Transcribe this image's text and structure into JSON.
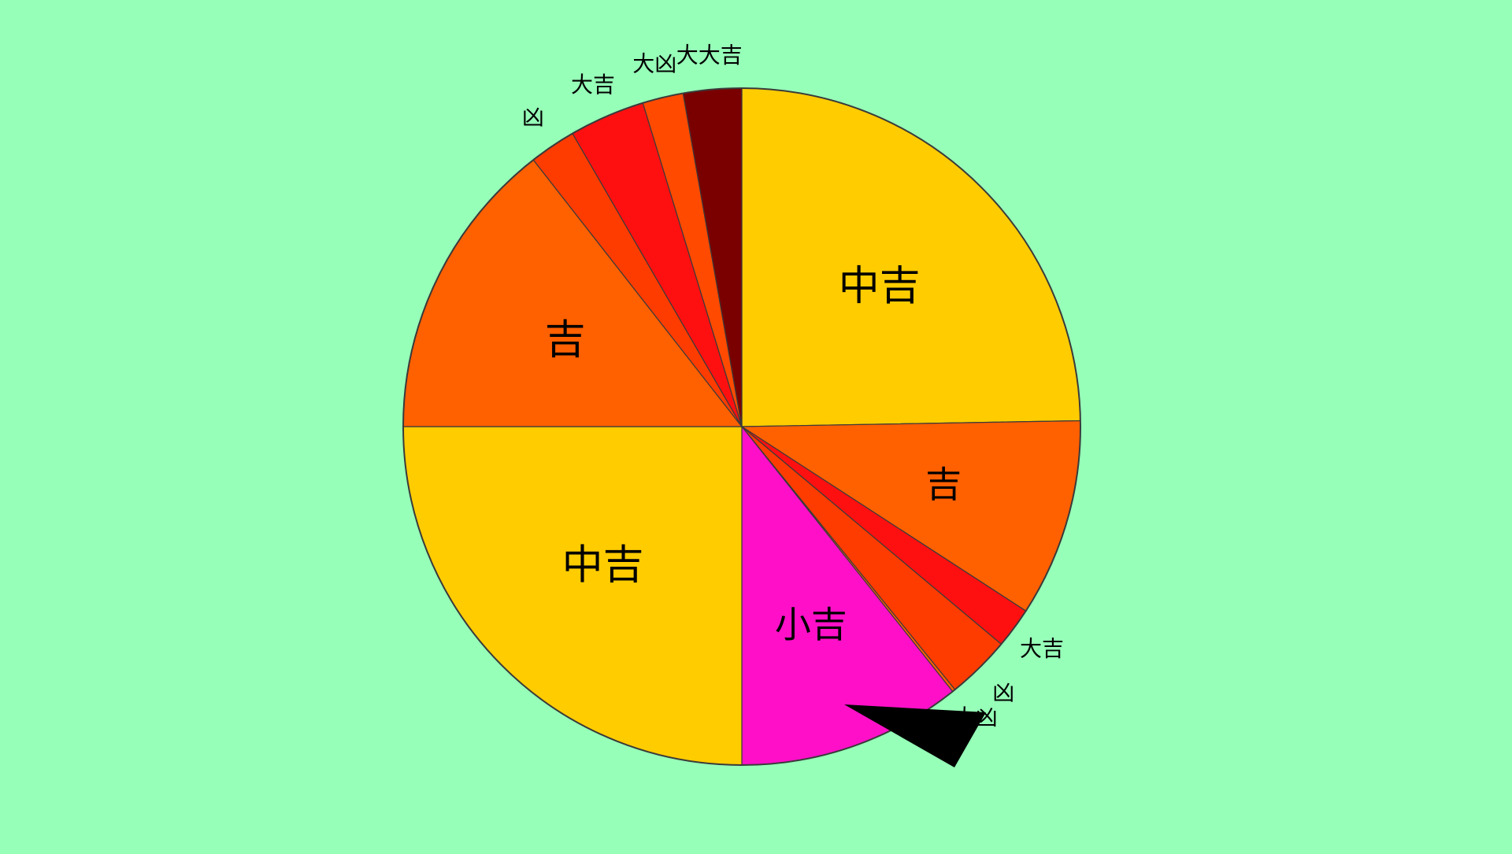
{
  "background_color": "#96ffb8",
  "wheel": {
    "outline_color": "#3a3a3a",
    "pointer_color": "#000000",
    "pointer_icon": "triangle-pointer-icon",
    "segments": [
      {
        "label": "中吉",
        "start_deg": 0,
        "end_deg": 89,
        "color": "#ffcc00",
        "label_style": "large"
      },
      {
        "label": "吉",
        "start_deg": 89,
        "end_deg": 123,
        "color": "#ff6000",
        "label_style": "medium"
      },
      {
        "label": "大吉",
        "start_deg": 123,
        "end_deg": 130,
        "color": "#ff1010",
        "label_style": "small-outside"
      },
      {
        "label": "凶",
        "start_deg": 130,
        "end_deg": 141,
        "color": "#ff3c00",
        "label_style": "small-outside"
      },
      {
        "label": "大凶",
        "start_deg": 141,
        "end_deg": 141.5,
        "color": "#ff6000",
        "label_style": "small-outside"
      },
      {
        "label": "小吉",
        "start_deg": 141.5,
        "end_deg": 180,
        "color": "#ff10c8",
        "label_style": "medium"
      },
      {
        "label": "中吉",
        "start_deg": 180,
        "end_deg": 270,
        "color": "#ffcc00",
        "label_style": "large"
      },
      {
        "label": "吉",
        "start_deg": 270,
        "end_deg": 322,
        "color": "#ff6000",
        "label_style": "large"
      },
      {
        "label": "凶",
        "start_deg": 322,
        "end_deg": 330,
        "color": "#ff3c00",
        "label_style": "small-outside"
      },
      {
        "label": "大吉",
        "start_deg": 330,
        "end_deg": 343,
        "color": "#ff1010",
        "label_style": "small-outside"
      },
      {
        "label": "大凶",
        "start_deg": 343,
        "end_deg": 350,
        "color": "#ff4a00",
        "label_style": "small-outside"
      },
      {
        "label": "大大吉",
        "start_deg": 350,
        "end_deg": 360,
        "color": "#7a0000",
        "label_style": "small-outside"
      }
    ]
  }
}
